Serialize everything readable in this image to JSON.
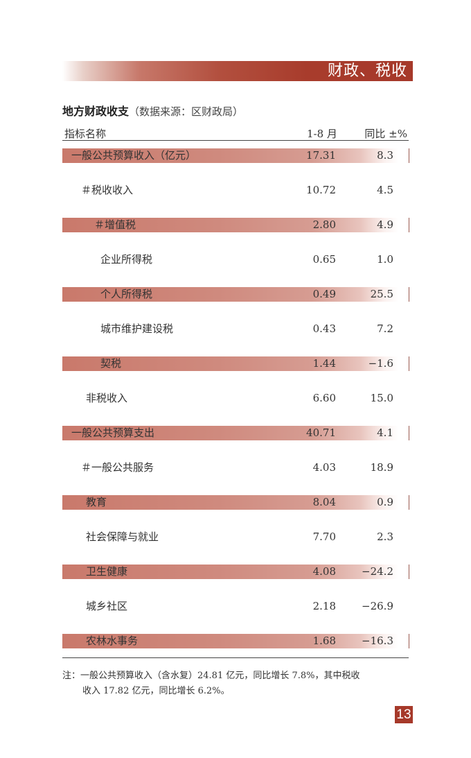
{
  "header": {
    "title": "财政、税收"
  },
  "section": {
    "title": "地方财政收支",
    "source": "（数据来源：区财政局）"
  },
  "table": {
    "columns": [
      "指标名称",
      "1-8 月",
      "同比 ±%"
    ],
    "rows": [
      {
        "name": "一般公共预算收入（亿元）",
        "value": "17.31",
        "yoy": "8.3",
        "indent": 0
      },
      {
        "name": "＃税收收入",
        "value": "10.72",
        "yoy": "4.5",
        "indent": 1
      },
      {
        "name": "＃增值税",
        "value": "2.80",
        "yoy": "4.9",
        "indent": 3
      },
      {
        "name": "企业所得税",
        "value": "0.65",
        "yoy": "1.0",
        "indent": 4
      },
      {
        "name": "个人所得税",
        "value": "0.49",
        "yoy": "25.5",
        "indent": 4
      },
      {
        "name": "城市维护建设税",
        "value": "0.43",
        "yoy": "7.2",
        "indent": 4
      },
      {
        "name": "契税",
        "value": "1.44",
        "yoy": "−1.6",
        "indent": 4
      },
      {
        "name": "非税收入",
        "value": "6.60",
        "yoy": "15.0",
        "indent": 2
      },
      {
        "name": "一般公共预算支出",
        "value": "40.71",
        "yoy": "4.1",
        "indent": 0
      },
      {
        "name": "＃一般公共服务",
        "value": "4.03",
        "yoy": "18.9",
        "indent": 1
      },
      {
        "name": "教育",
        "value": "8.04",
        "yoy": "0.9",
        "indent": 2
      },
      {
        "name": "社会保障与就业",
        "value": "7.70",
        "yoy": "2.3",
        "indent": 2
      },
      {
        "name": "卫生健康",
        "value": "4.08",
        "yoy": "−24.2",
        "indent": 2
      },
      {
        "name": "城乡社区",
        "value": "2.18",
        "yoy": "−26.9",
        "indent": 2
      },
      {
        "name": "农林水事务",
        "value": "1.68",
        "yoy": "−16.3",
        "indent": 2
      }
    ]
  },
  "note": {
    "line1": "注：一般公共预算收入（含水复）24.81 亿元，同比增长 7.8%，其中税收",
    "line2": "收入 17.82 亿元，同比增长 6.2%。"
  },
  "page_number": "13",
  "colors": {
    "accent": "#a6392a",
    "band": "#c9796b"
  }
}
